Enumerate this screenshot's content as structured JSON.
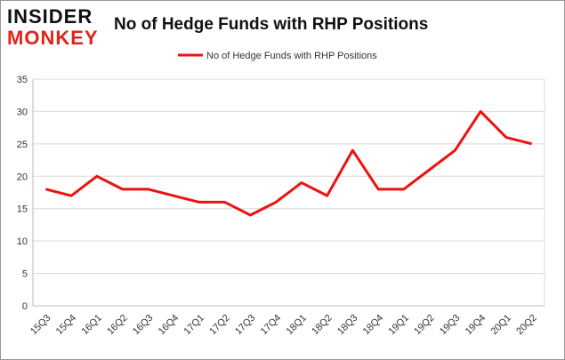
{
  "logo": {
    "line1": "INSIDER",
    "line2": "MONKEY"
  },
  "chart_data": {
    "type": "line",
    "title": "No of Hedge Funds with RHP Positions",
    "categories": [
      "15Q3",
      "15Q4",
      "16Q1",
      "16Q2",
      "16Q3",
      "16Q4",
      "17Q1",
      "17Q2",
      "17Q3",
      "17Q4",
      "18Q1",
      "18Q2",
      "18Q3",
      "18Q4",
      "19Q1",
      "19Q2",
      "19Q3",
      "19Q4",
      "20Q1",
      "20Q2"
    ],
    "series": [
      {
        "name": "No of Hedge Funds with RHP Positions",
        "color": "#ee1111",
        "values": [
          18,
          17,
          20,
          18,
          18,
          17,
          16,
          16,
          14,
          16,
          19,
          17,
          24,
          18,
          18,
          21,
          24,
          30,
          26,
          25
        ]
      }
    ],
    "ylim": [
      0,
      35
    ],
    "yticks": [
      0,
      5,
      10,
      15,
      20,
      25,
      30,
      35
    ],
    "grid": true,
    "legend": "top"
  }
}
